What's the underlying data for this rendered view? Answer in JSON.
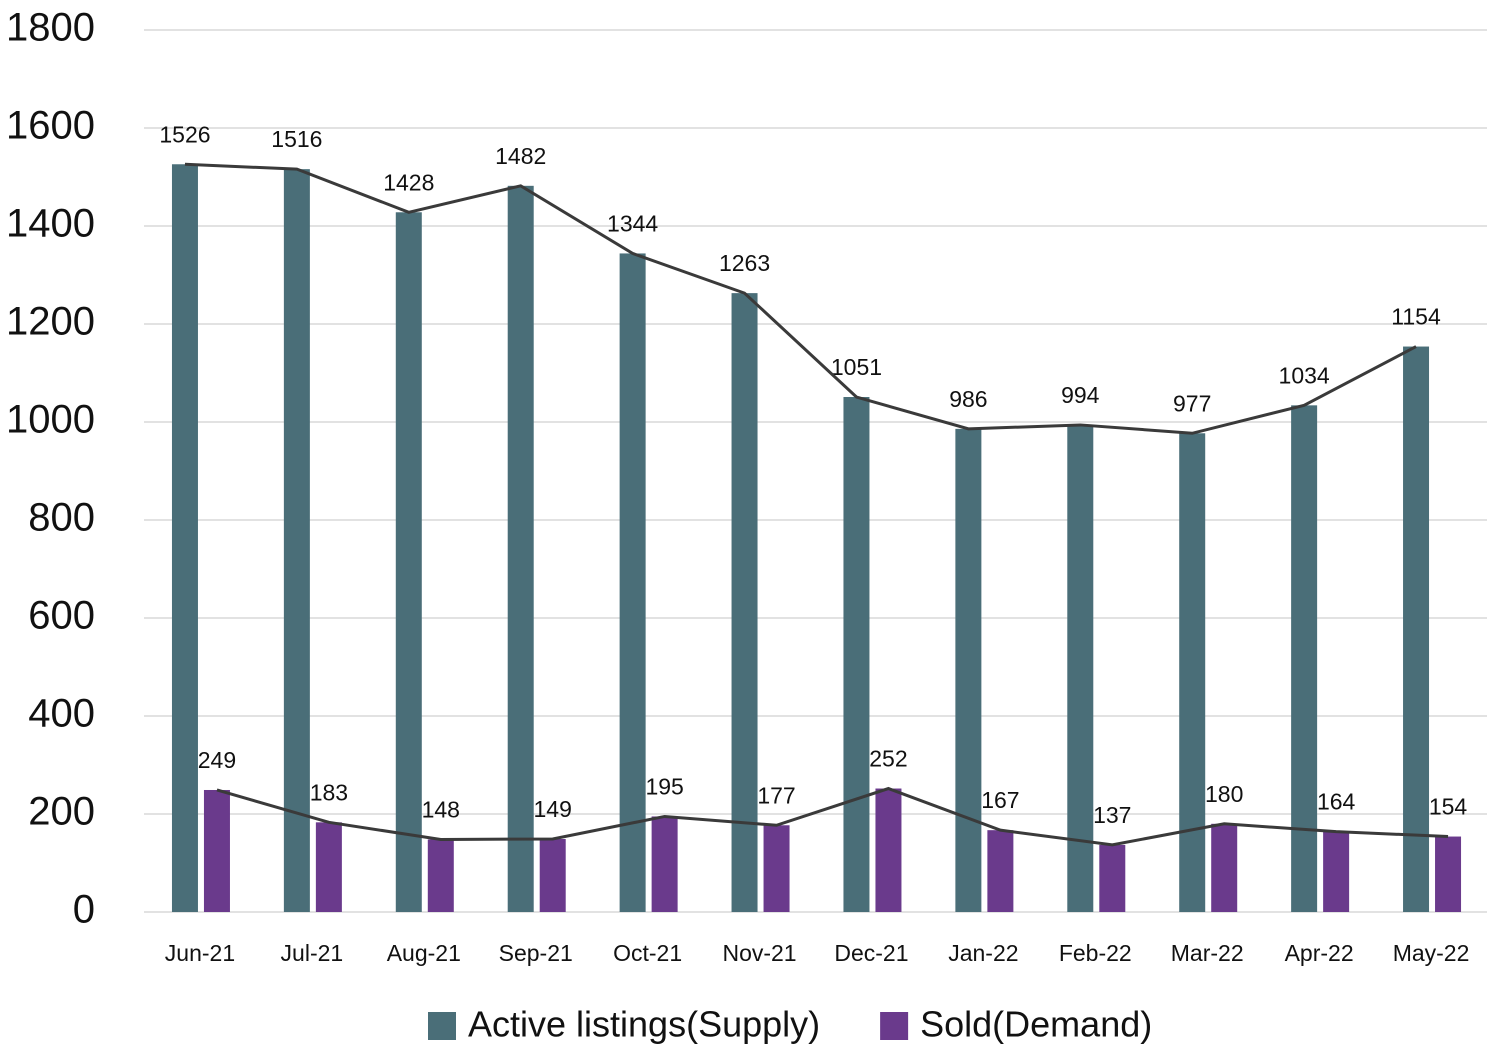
{
  "chart_data": {
    "type": "bar",
    "categories": [
      "Jun-21",
      "Jul-21",
      "Aug-21",
      "Sep-21",
      "Oct-21",
      "Nov-21",
      "Dec-21",
      "Jan-22",
      "Feb-22",
      "Mar-22",
      "Apr-22",
      "May-22"
    ],
    "series": [
      {
        "name": "Active listings(Supply)",
        "color": "#4a6e78",
        "values": [
          1526,
          1516,
          1428,
          1482,
          1344,
          1263,
          1051,
          986,
          994,
          977,
          1034,
          1154
        ]
      },
      {
        "name": "Sold(Demand)",
        "color": "#6a3a8c",
        "values": [
          249,
          183,
          148,
          149,
          195,
          177,
          252,
          167,
          137,
          180,
          164,
          154
        ]
      }
    ],
    "ylim": [
      0,
      1800
    ],
    "yticks": [
      0,
      200,
      400,
      600,
      800,
      1000,
      1200,
      1400,
      1600,
      1800
    ],
    "grid": true,
    "trendlines": true,
    "legend": "bottom"
  }
}
